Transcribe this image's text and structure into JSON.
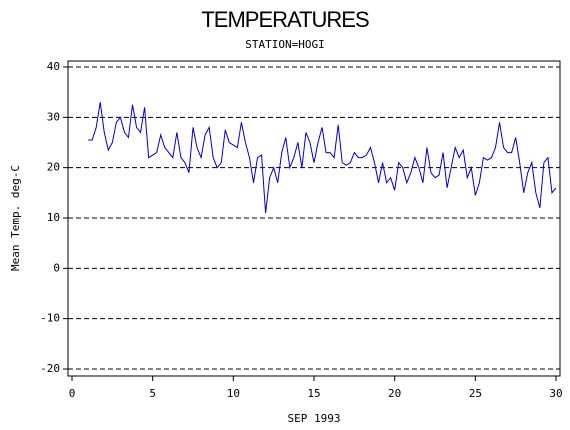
{
  "chart_data": {
    "type": "line",
    "title": "TEMPERATURES",
    "subtitle": "STATION=HOGI",
    "x_label": "SEP 1993",
    "y_label": "Mean Temp. deg-C",
    "xlim": [
      0,
      30
    ],
    "xticks": [
      0,
      5,
      10,
      15,
      20,
      25,
      30
    ],
    "ylim": [
      -20,
      40
    ],
    "yticks": [
      -20,
      -10,
      0,
      10,
      20,
      30,
      40
    ],
    "grid": true,
    "series": [
      {
        "color": "#0000cc",
        "x": [
          1,
          1.25,
          1.5,
          1.75,
          2,
          2.25,
          2.5,
          2.75,
          3,
          3.25,
          3.5,
          3.75,
          4,
          4.25,
          4.5,
          4.75,
          5,
          5.25,
          5.5,
          5.75,
          6,
          6.25,
          6.5,
          6.75,
          7,
          7.25,
          7.5,
          7.75,
          8,
          8.25,
          8.5,
          8.75,
          9,
          9.25,
          9.5,
          9.75,
          10,
          10.25,
          10.5,
          10.75,
          11,
          11.25,
          11.5,
          11.75,
          12,
          12.25,
          12.5,
          12.75,
          13,
          13.25,
          13.5,
          13.75,
          14,
          14.25,
          14.5,
          14.75,
          15,
          15.25,
          15.5,
          15.75,
          16,
          16.25,
          16.5,
          16.75,
          17,
          17.25,
          17.5,
          17.75,
          18,
          18.25,
          18.5,
          18.75,
          19,
          19.25,
          19.5,
          19.75,
          20,
          20.25,
          20.5,
          20.75,
          21,
          21.25,
          21.5,
          21.75,
          22,
          22.25,
          22.5,
          22.75,
          23,
          23.25,
          23.5,
          23.75,
          24,
          24.25,
          24.5,
          24.75,
          25,
          25.25,
          25.5,
          25.75,
          26,
          26.25,
          26.5,
          26.75,
          27,
          27.25,
          27.5,
          27.75,
          28,
          28.25,
          28.5,
          28.75,
          29,
          29.25,
          29.5,
          29.75,
          30
        ],
        "values": [
          25.5,
          25.5,
          28,
          33,
          27,
          23.5,
          25,
          29,
          30,
          27,
          26,
          32.5,
          28,
          27,
          32,
          22,
          22.5,
          23,
          26.5,
          24,
          23,
          22,
          27,
          22,
          21,
          19,
          28,
          24,
          22,
          26.5,
          28,
          22,
          20,
          21,
          27.5,
          25,
          24.5,
          24,
          29,
          25,
          22,
          17,
          22,
          22.5,
          11,
          18,
          20,
          17,
          23,
          26,
          20,
          22,
          25,
          20,
          27,
          25,
          21,
          25,
          28,
          23,
          23,
          22,
          28.5,
          21,
          20.5,
          21,
          23,
          22,
          22,
          22.5,
          24,
          21,
          17,
          21,
          17,
          18,
          15.5,
          21,
          20,
          17,
          19,
          22,
          20,
          17,
          24,
          19,
          18,
          18.5,
          23,
          16,
          20,
          24,
          22,
          23.5,
          18,
          20,
          14.5,
          17,
          22,
          21.5,
          22,
          24,
          29,
          24,
          23,
          23,
          26,
          21,
          15,
          19,
          21,
          15,
          12,
          21,
          22,
          15,
          16
        ]
      }
    ]
  }
}
